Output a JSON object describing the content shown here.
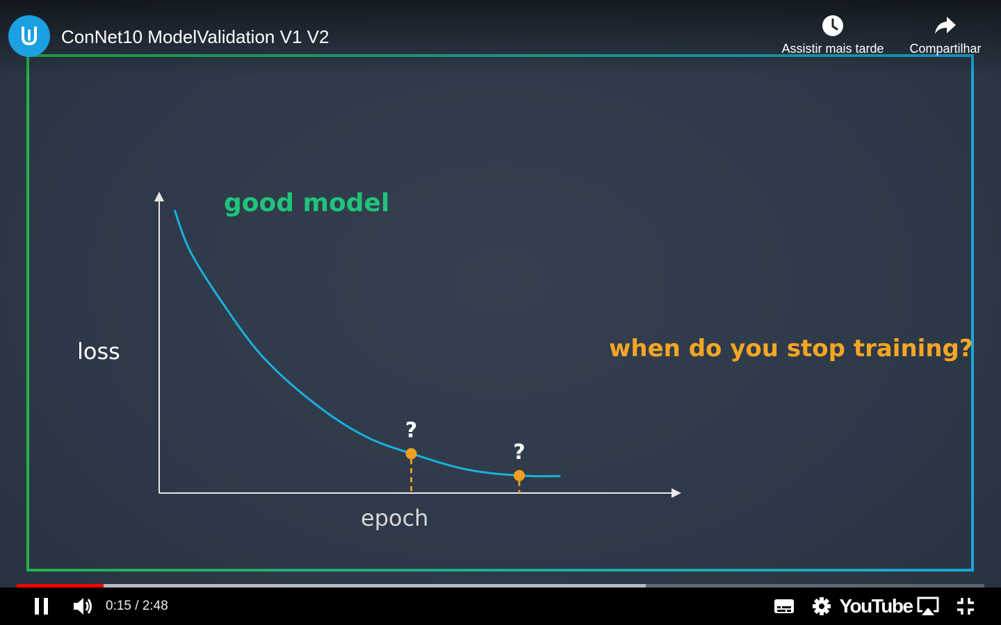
{
  "video": {
    "title": "ConNet10 ModelValidation V1 V2",
    "channel_logo_icon": "udacity-logo-icon",
    "brand_color": "#1ba0e2"
  },
  "top_actions": {
    "watch_later": {
      "label": "Assistir mais tarde",
      "icon": "clock-icon"
    },
    "share": {
      "label": "Compartilhar",
      "icon": "share-arrow-icon"
    }
  },
  "slide": {
    "frame_colors": {
      "left": "#22b24c",
      "right": "#1aa7d8"
    },
    "title": "good model",
    "title_color": "#1fc47a",
    "question": "when do you stop training?",
    "question_color": "#f5a623",
    "curve_color": "#1ab0e0",
    "marker_color": "#f0a020"
  },
  "chart_data": {
    "type": "line",
    "xlabel": "epoch",
    "ylabel": "loss",
    "grid": false,
    "legend": "none",
    "xlim": [
      0,
      10
    ],
    "ylim": [
      0,
      10
    ],
    "series": [
      {
        "x": [
          0.3,
          0.6,
          1.2,
          2.0,
          3.0,
          4.0,
          5.0,
          6.0,
          7.0,
          7.8
        ],
        "values": [
          9.7,
          8.3,
          6.6,
          4.7,
          3.1,
          1.95,
          1.3,
          0.8,
          0.6,
          0.58
        ]
      }
    ],
    "annotations": [
      {
        "label": "?",
        "x": 4.9,
        "y": 1.35
      },
      {
        "label": "?",
        "x": 7.0,
        "y": 0.6
      }
    ]
  },
  "player": {
    "current_time": "0:15",
    "duration": "2:48",
    "time_separator": " / ",
    "played_fraction": 0.09,
    "buffered_fraction": 0.65,
    "controls": {
      "pause": "pause-icon",
      "volume": "volume-icon",
      "subtitles": "subtitles-icon",
      "settings": "gear-icon",
      "youtube": "YouTube",
      "airplay": "airplay-icon",
      "exit_fullscreen": "exit-fullscreen-icon"
    },
    "progress_color": "#ff0000"
  }
}
